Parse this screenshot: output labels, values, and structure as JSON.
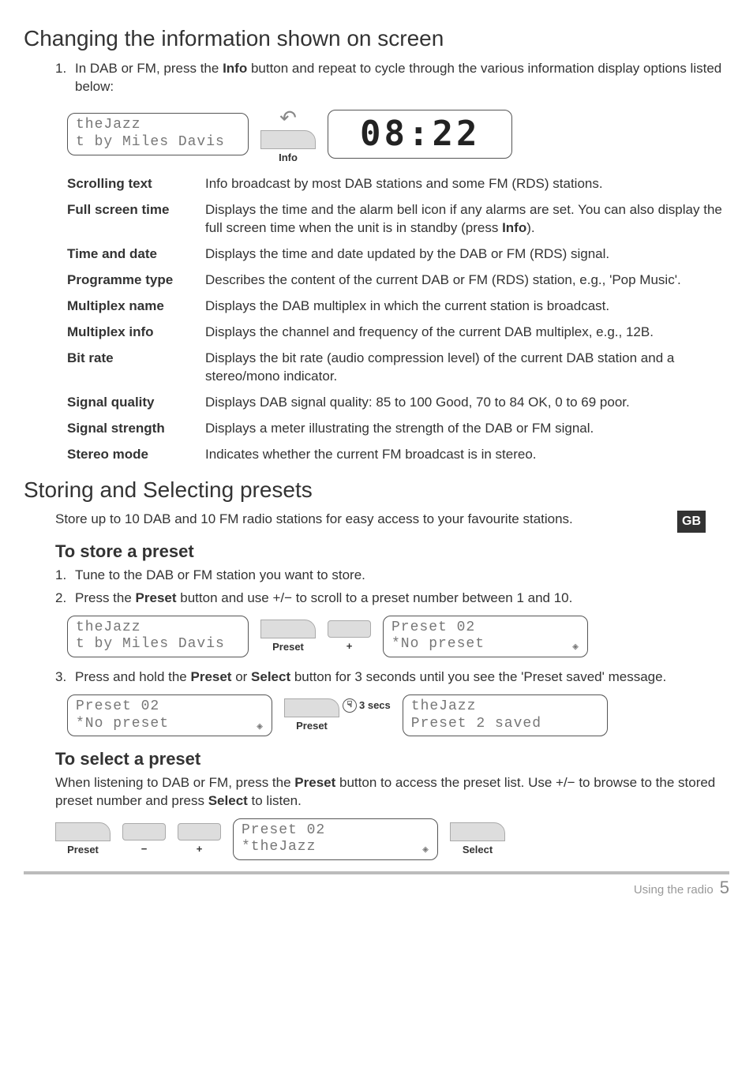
{
  "section1": {
    "heading": "Changing the information shown on screen",
    "step1_num": "1.",
    "step1_text_a": "In DAB or FM, press the ",
    "step1_text_b": "Info",
    "step1_text_c": " button and repeat to cycle through the various information display options listed below:",
    "lcd1_line1": "theJazz",
    "lcd1_line2": "t by Miles Davis",
    "info_btn_label": "Info",
    "clock_display": "08:22",
    "table": [
      {
        "label": "Scrolling text",
        "desc_a": "Info broadcast by most DAB stations and some FM (RDS) stations.",
        "desc_b": "",
        "desc_c": ""
      },
      {
        "label": "Full screen time",
        "desc_a": "Displays the time and the alarm bell icon if any alarms are set. You can also display the full screen time when the unit is in standby (press ",
        "desc_b": "Info",
        "desc_c": ")."
      },
      {
        "label": "Time and date",
        "desc_a": "Displays the time and date updated by the DAB or FM (RDS) signal.",
        "desc_b": "",
        "desc_c": ""
      },
      {
        "label": "Programme type",
        "desc_a": "Describes the content of the current DAB or FM (RDS) station, e.g., 'Pop Music'.",
        "desc_b": "",
        "desc_c": ""
      },
      {
        "label": "Multiplex name",
        "desc_a": "Displays the DAB multiplex in which the current station is broadcast.",
        "desc_b": "",
        "desc_c": ""
      },
      {
        "label": "Multiplex info",
        "desc_a": "Displays the channel and frequency of the current DAB multiplex, e.g., 12B.",
        "desc_b": "",
        "desc_c": ""
      },
      {
        "label": "Bit rate",
        "desc_a": "Displays the bit rate (audio compression level) of the current DAB station and a stereo/mono indicator.",
        "desc_b": "",
        "desc_c": ""
      },
      {
        "label": "Signal quality",
        "desc_a": "Displays DAB signal quality: 85 to 100 Good, 70 to 84 OK, 0 to 69 poor.",
        "desc_b": "",
        "desc_c": ""
      },
      {
        "label": "Signal strength",
        "desc_a": "Displays a meter illustrating the strength of the DAB or FM signal.",
        "desc_b": "",
        "desc_c": ""
      },
      {
        "label": "Stereo mode",
        "desc_a": "Indicates whether the current FM broadcast is in stereo.",
        "desc_b": "",
        "desc_c": ""
      }
    ]
  },
  "section2": {
    "heading": "Storing and Selecting presets",
    "intro": "Store up to 10 DAB and 10 FM radio stations for easy access to your favourite stations.",
    "gb_label": "GB",
    "store_heading": "To store a preset",
    "store_step1_num": "1.",
    "store_step1": "Tune to the DAB or FM station you want to store.",
    "store_step2_num": "2.",
    "store_step2_a": "Press the ",
    "store_step2_b": "Preset",
    "store_step2_c": " button and use  +/−  to scroll to a preset number between 1 and 10.",
    "lcd2_line1": "theJazz",
    "lcd2_line2": "t by Miles Davis",
    "preset_btn_label": "Preset",
    "plus_label": "+",
    "minus_label": "−",
    "lcd3_line1": "Preset 02",
    "lcd3_line2": "*No preset",
    "store_step3_num": "3.",
    "store_step3_a": "Press and hold the ",
    "store_step3_b": "Preset",
    "store_step3_c": " or ",
    "store_step3_d": "Select",
    "store_step3_e": " button for 3 seconds until you see the 'Preset saved' message.",
    "lcd4_line1": "Preset 02",
    "lcd4_line2": "*No preset",
    "hold_label": "3 secs",
    "lcd5_line1": "theJazz",
    "lcd5_line2": "Preset 2 saved",
    "select_heading": "To select a preset",
    "select_text_a": "When listening to DAB or FM, press the ",
    "select_text_b": "Preset",
    "select_text_c": " button to access the preset list. Use  +/−  to browse to the stored preset number and press ",
    "select_text_d": "Select",
    "select_text_e": " to listen.",
    "lcd6_line1": "Preset 02",
    "lcd6_line2": "*theJazz",
    "select_btn_label": "Select"
  },
  "footer": {
    "section_name": "Using the radio",
    "page_num": "5"
  },
  "colors": {
    "text": "#333333",
    "lcd_text": "#777777",
    "btn_fill": "#dddddd",
    "border": "#555555",
    "footer_bar": "#bbbbbb"
  }
}
